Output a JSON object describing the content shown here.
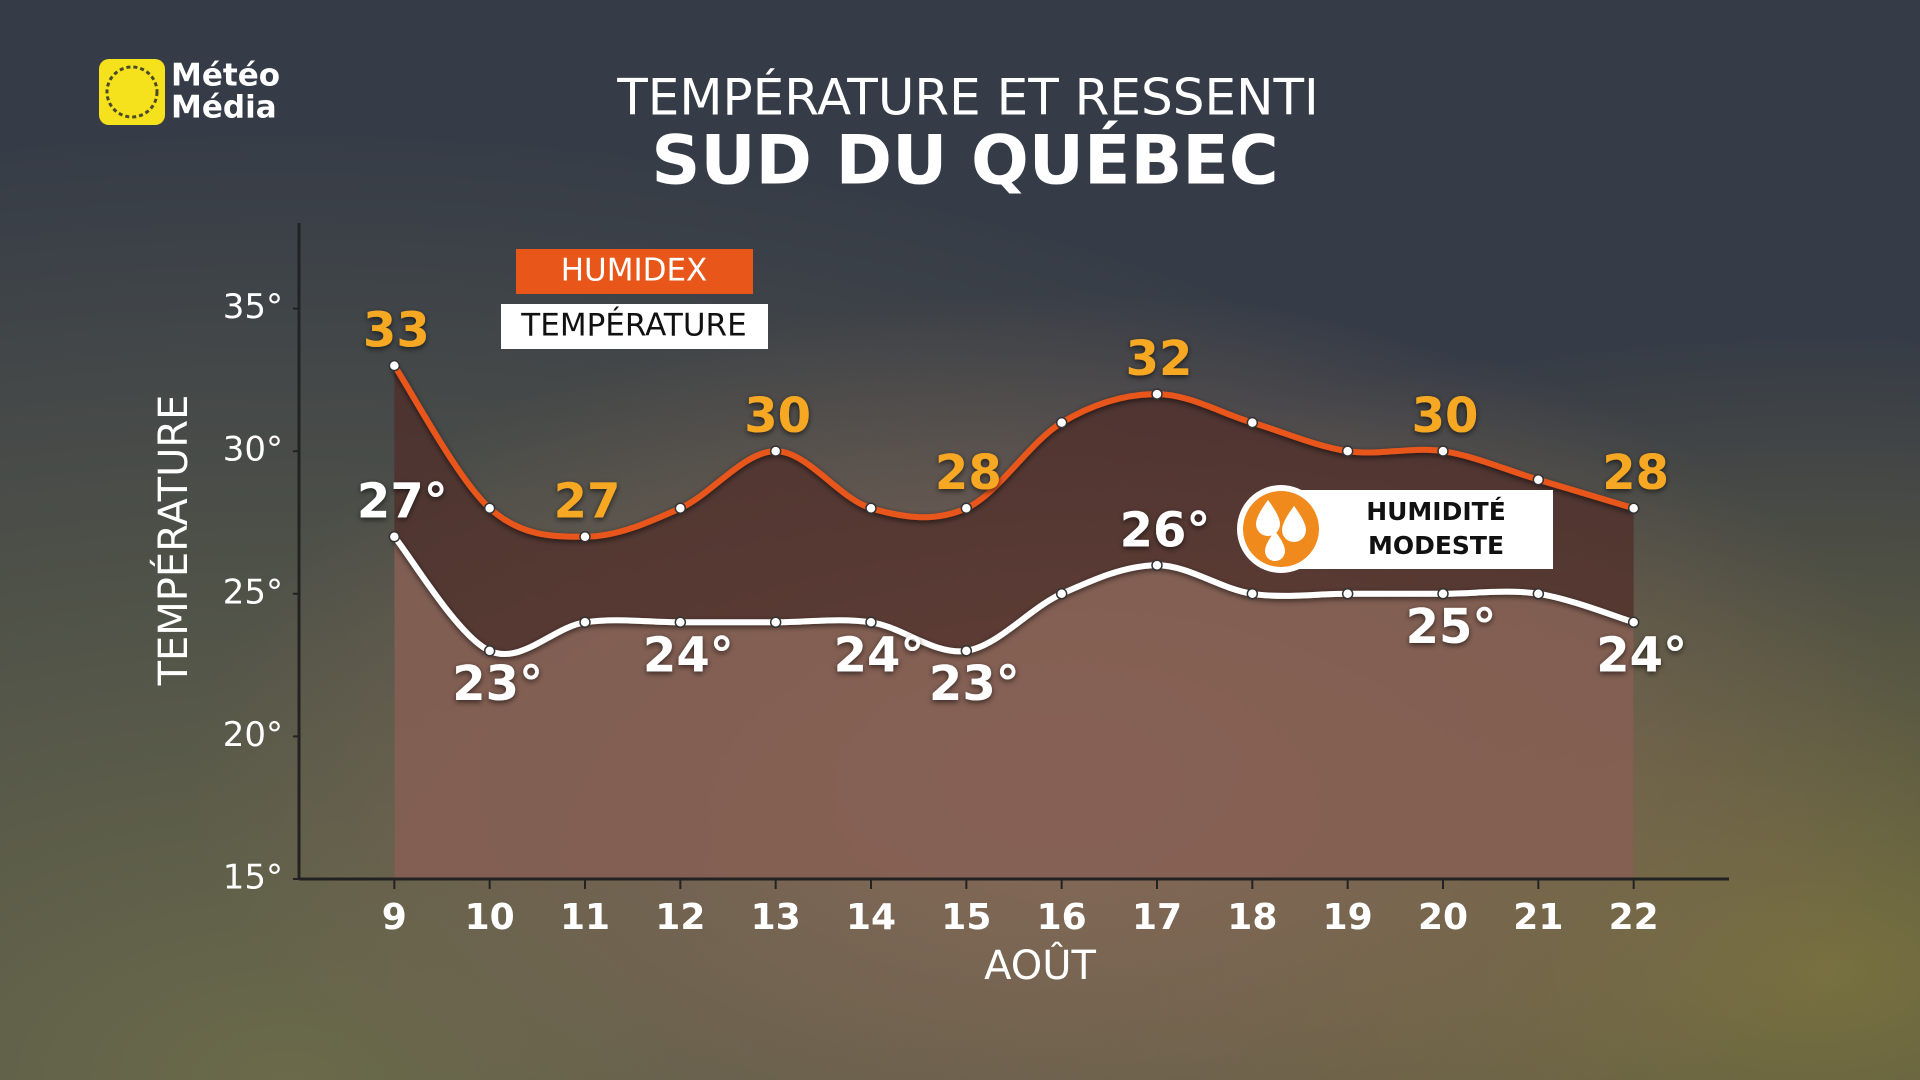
{
  "logo": [
    "Météo",
    "Média"
  ],
  "chart_data": {
    "type": "line",
    "title": "TEMPÉRATURE ET RESSENTI",
    "subtitle": "SUD DU QUÉBEC",
    "ylabel": "TEMPÉRATURE",
    "xlabel": "AOÛT",
    "categories": [
      "9",
      "10",
      "11",
      "12",
      "13",
      "14",
      "15",
      "16",
      "17",
      "18",
      "19",
      "20",
      "21",
      "22"
    ],
    "series": [
      {
        "name": "HUMIDEX",
        "color": "#e8561a",
        "values": [
          33,
          28,
          27,
          28,
          30,
          28,
          28,
          31,
          32,
          31,
          30,
          30,
          29,
          28
        ],
        "value_labels": [
          "33",
          null,
          "27",
          null,
          "30",
          null,
          "28",
          null,
          "32",
          null,
          null,
          "30",
          null,
          "28"
        ]
      },
      {
        "name": "TEMPÉRATURE",
        "color": "#ffffff",
        "values": [
          27,
          23,
          24,
          24,
          24,
          24,
          23,
          25,
          26,
          25,
          25,
          25,
          25,
          24
        ],
        "value_labels": [
          "27°",
          "23°",
          null,
          "24°",
          null,
          "24°",
          "23°",
          null,
          "26°",
          null,
          null,
          "25°",
          null,
          "24°"
        ]
      }
    ],
    "ylim": [
      15,
      38
    ],
    "yticks": [
      {
        "value": 15,
        "label": "15°"
      },
      {
        "value": 20,
        "label": "20°"
      },
      {
        "value": 25,
        "label": "25°"
      },
      {
        "value": 30,
        "label": "30°"
      },
      {
        "value": 35,
        "label": "35°"
      }
    ],
    "annotation": [
      "HUMIDITÉ",
      "MODESTE"
    ]
  }
}
